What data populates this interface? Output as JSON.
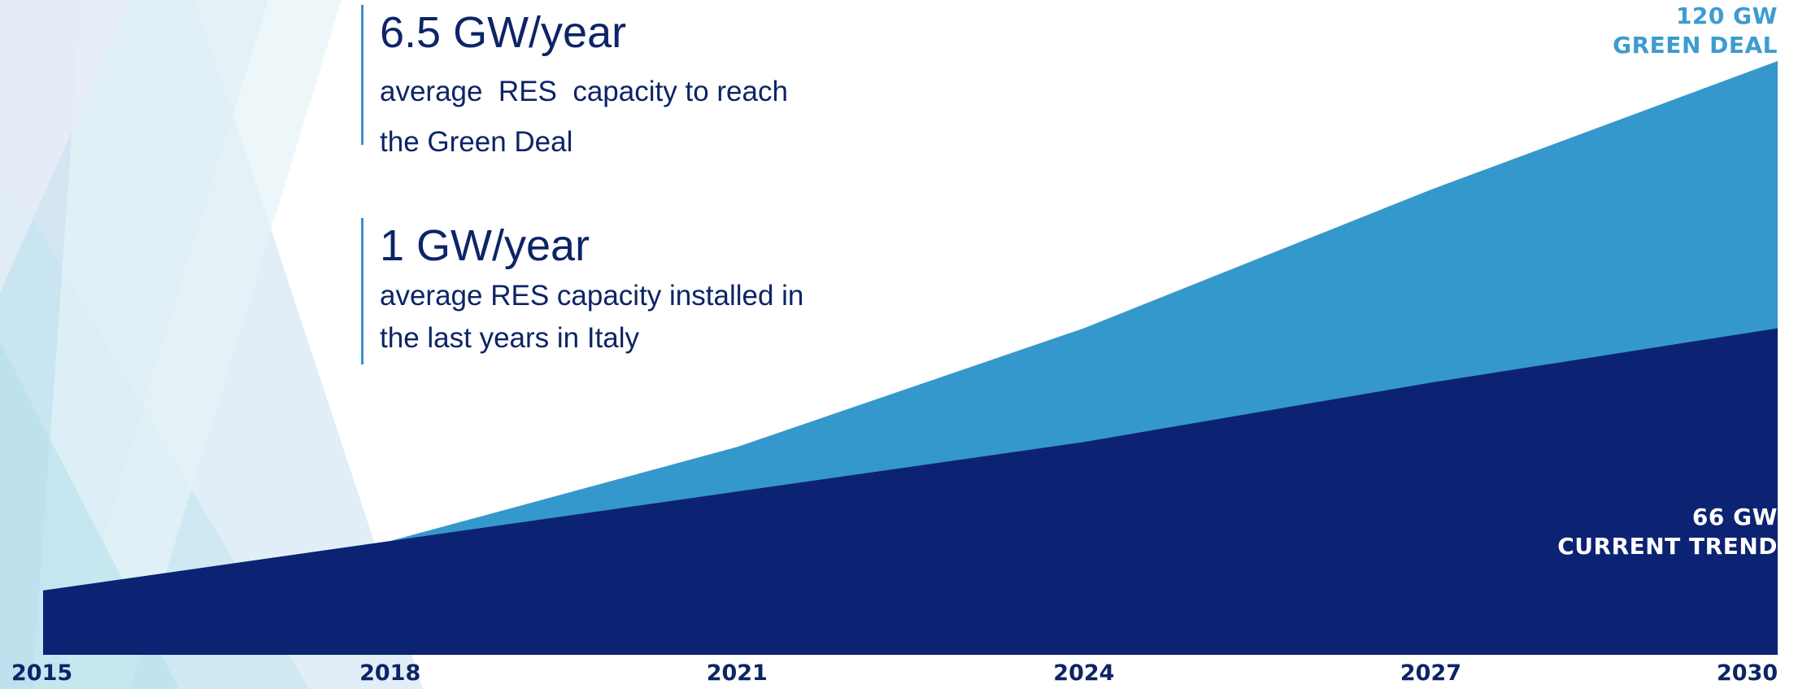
{
  "chart_data": {
    "type": "area",
    "x": [
      "2015",
      "2018",
      "2021",
      "2024",
      "2027",
      "2030"
    ],
    "series": [
      {
        "name": "CURRENT TREND",
        "color": "#0c2373",
        "values": [
          13,
          23,
          33,
          43,
          55,
          66
        ]
      },
      {
        "name": "GREEN DEAL",
        "color": "#3598cc",
        "values": [
          13,
          23,
          42,
          66,
          94,
          120
        ]
      }
    ],
    "ylim": [
      0,
      130
    ],
    "grid": false,
    "legend": "none",
    "annotations": [
      {
        "value": "120 GW",
        "label": "GREEN DEAL",
        "color": "#3d9bd1"
      },
      {
        "value": "66 GW",
        "label": "CURRENT TREND",
        "color": "#ffffff"
      }
    ]
  },
  "callouts": [
    {
      "headline": "6.5 GW/year",
      "lines": [
        "average  RES  capacity to reach",
        "the Green Deal"
      ]
    },
    {
      "headline": "1 GW/year",
      "lines": [
        "average RES capacity installed in",
        "the last years in Italy"
      ]
    }
  ],
  "colors": {
    "text_dark": "#0d2466",
    "accent_line": "#3a8fd0",
    "green_deal": "#3598cc",
    "current_trend": "#0c2373"
  }
}
